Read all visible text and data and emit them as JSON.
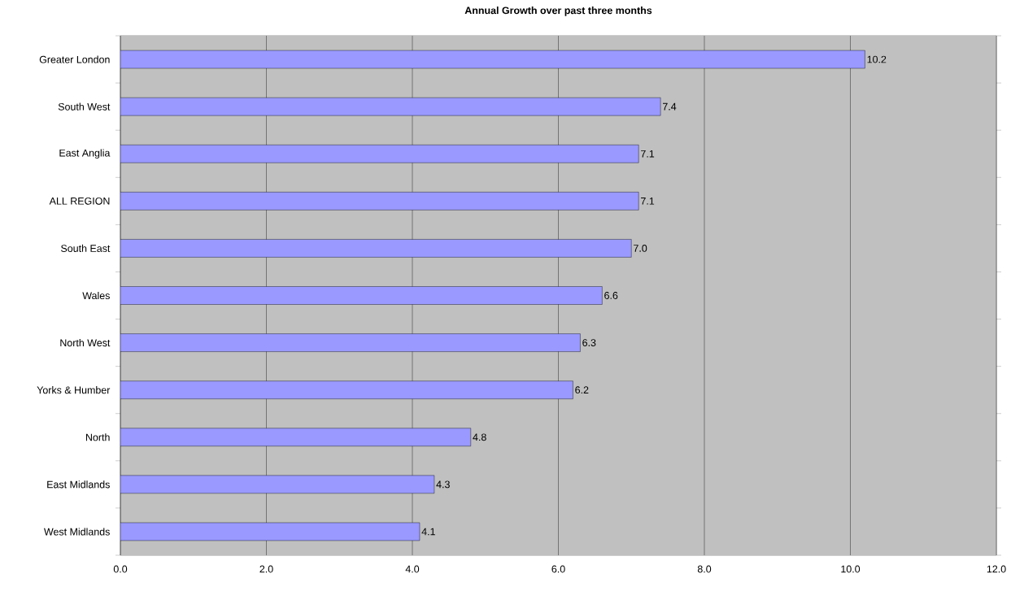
{
  "chart_data": {
    "type": "bar",
    "orientation": "horizontal",
    "title": "Annual Growth over past three months",
    "categories": [
      "Greater London",
      "South West",
      "East Anglia",
      "ALL REGION",
      "South East",
      "Wales",
      "North West",
      "Yorks & Humber",
      "North",
      "East Midlands",
      "West Midlands"
    ],
    "values": [
      10.2,
      7.4,
      7.1,
      7.1,
      7.0,
      6.6,
      6.3,
      6.2,
      4.8,
      4.3,
      4.1
    ],
    "value_labels": [
      "10.2",
      "7.4",
      "7.1",
      "7.1",
      "7.0",
      "6.6",
      "6.3",
      "6.2",
      "4.8",
      "4.3",
      "4.1"
    ],
    "color": "#9999ff",
    "xlim": [
      0,
      12
    ],
    "xticks": [
      {
        "value": 0,
        "label": "0.0"
      },
      {
        "value": 2,
        "label": "2.0"
      },
      {
        "value": 4,
        "label": "4.0"
      },
      {
        "value": 6,
        "label": "6.0"
      },
      {
        "value": 8,
        "label": "8.0"
      },
      {
        "value": 10,
        "label": "10.0"
      },
      {
        "value": 12,
        "label": "12.0"
      }
    ],
    "grid": "x"
  }
}
